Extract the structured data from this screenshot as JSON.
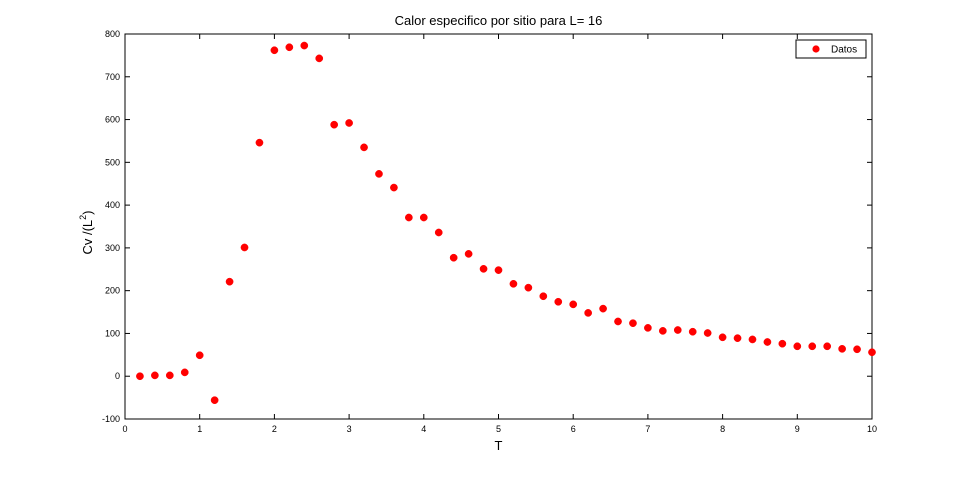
{
  "chart_data": {
    "type": "scatter",
    "title": "Calor especifico por sitio para L= 16",
    "xlabel": "T",
    "ylabel": "Cv /(L",
    "ylabel_superscript": "2",
    "ylabel_suffix": ")",
    "xlim": [
      0,
      10
    ],
    "ylim": [
      -100,
      800
    ],
    "xticks": [
      0,
      1,
      2,
      3,
      4,
      5,
      6,
      7,
      8,
      9,
      10
    ],
    "yticks": [
      -100,
      0,
      100,
      200,
      300,
      400,
      500,
      600,
      700,
      800
    ],
    "grid": false,
    "legend_position": "top-right",
    "series": [
      {
        "name": "Datos",
        "color": "#ff0000",
        "marker": "circle",
        "x": [
          0.2,
          0.4,
          0.6,
          0.8,
          1.0,
          1.2,
          1.4,
          1.6,
          1.8,
          2.0,
          2.2,
          2.4,
          2.6,
          2.8,
          3.0,
          3.2,
          3.4,
          3.6,
          3.8,
          4.0,
          4.2,
          4.4,
          4.6,
          4.8,
          5.0,
          5.2,
          5.4,
          5.6,
          5.8,
          6.0,
          6.2,
          6.4,
          6.6,
          6.8,
          7.0,
          7.2,
          7.4,
          7.6,
          7.8,
          8.0,
          8.2,
          8.4,
          8.6,
          8.8,
          9.0,
          9.2,
          9.4,
          9.6,
          9.8,
          10.0
        ],
        "y": [
          0,
          2,
          2,
          9,
          49,
          -56,
          221,
          301,
          546,
          762,
          769,
          773,
          743,
          588,
          592,
          535,
          473,
          441,
          371,
          371,
          336,
          277,
          286,
          251,
          248,
          216,
          207,
          187,
          174,
          168,
          148,
          158,
          128,
          124,
          113,
          106,
          108,
          104,
          101,
          91,
          89,
          86,
          80,
          76,
          70,
          70,
          70,
          64,
          63,
          56
        ]
      }
    ]
  }
}
